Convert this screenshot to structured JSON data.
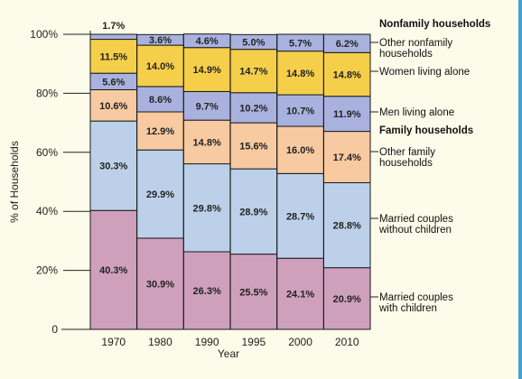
{
  "chart_data": {
    "type": "bar",
    "stacked": true,
    "categories": [
      "1970",
      "1980",
      "1990",
      "1995",
      "2000",
      "2010"
    ],
    "xlabel": "Year",
    "ylabel": "% of Households",
    "ylim": [
      0,
      100
    ],
    "y_ticks": [
      "0",
      "20%",
      "40%",
      "60%",
      "80%",
      "100%"
    ],
    "grid": false,
    "legend_placement": "right",
    "series": [
      {
        "name": "Married couples with children",
        "color": "#cfa0bc",
        "values": [
          40.3,
          30.9,
          26.3,
          25.5,
          24.1,
          20.9
        ],
        "labels": [
          "40.3%",
          "30.9%",
          "26.3%",
          "25.5%",
          "24.1%",
          "20.9%"
        ]
      },
      {
        "name": "Married couples without children",
        "color": "#bcd1e9",
        "values": [
          30.3,
          29.9,
          29.8,
          28.9,
          28.7,
          28.8
        ],
        "labels": [
          "30.3%",
          "29.9%",
          "29.8%",
          "28.9%",
          "28.7%",
          "28.8%"
        ]
      },
      {
        "name": "Other family households",
        "color": "#f7caa1",
        "values": [
          10.6,
          12.9,
          14.8,
          15.6,
          16.0,
          17.4
        ],
        "labels": [
          "10.6%",
          "12.9%",
          "14.8%",
          "15.6%",
          "16.0%",
          "17.4%"
        ]
      },
      {
        "name": "Men living alone",
        "color": "#a9b2de",
        "values": [
          5.6,
          8.6,
          9.7,
          10.2,
          10.7,
          11.9
        ],
        "labels": [
          "5.6%",
          "8.6%",
          "9.7%",
          "10.2%",
          "10.7%",
          "11.9%"
        ]
      },
      {
        "name": "Women living alone",
        "color": "#f5cf4a",
        "values": [
          11.5,
          14.0,
          14.9,
          14.7,
          14.8,
          14.8
        ],
        "labels": [
          "11.5%",
          "14.0%",
          "14.9%",
          "14.7%",
          "14.8%",
          "14.8%"
        ]
      },
      {
        "name": "Other nonfamily households",
        "color": "#a9b2de",
        "values": [
          1.7,
          3.6,
          4.6,
          5.0,
          5.7,
          6.2
        ],
        "labels": [
          "1.7%",
          "3.6%",
          "4.6%",
          "5.0%",
          "5.7%",
          "6.2%"
        ]
      }
    ],
    "legend_groups": {
      "nonfamily": "Nonfamily households",
      "family": "Family households"
    },
    "legend_entries": [
      {
        "series": 5,
        "lines": [
          "Other nonfamily",
          "households"
        ]
      },
      {
        "series": 4,
        "lines": [
          "Women living alone"
        ]
      },
      {
        "series": 3,
        "lines": [
          "Men living alone"
        ]
      },
      {
        "series": 2,
        "lines": [
          "Other family",
          "households"
        ]
      },
      {
        "series": 1,
        "lines": [
          "Married couples",
          "without children"
        ]
      },
      {
        "series": 0,
        "lines": [
          "Married couples",
          "with children"
        ]
      }
    ]
  }
}
